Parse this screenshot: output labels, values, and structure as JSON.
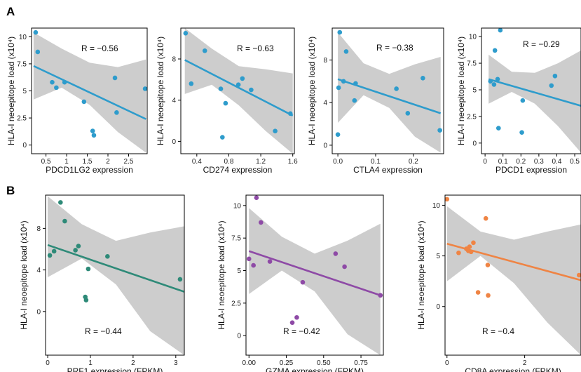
{
  "panels": [
    {
      "letter": "A"
    },
    {
      "letter": "B"
    }
  ],
  "chart_data": [
    {
      "type": "scatter",
      "panel": "A",
      "xlabel": "PDCD1LG2 expression",
      "ylabel": "HLA-I neoepitope load (x10⁴)",
      "annotation": "R = −0.56",
      "color": "#2e9ccc",
      "xlim": [
        0.15,
        2.95
      ],
      "ylim": [
        -0.8,
        10.8
      ],
      "xticks": [
        0.5,
        1,
        1.5,
        2,
        2.5
      ],
      "xtick_labels": [
        "0.5",
        "1",
        "1.5",
        "2",
        "2.5"
      ],
      "yticks": [
        0,
        2.5,
        5,
        7.5,
        10
      ],
      "ytick_labels": [
        "0",
        "2.5",
        "5",
        "7.5",
        "10"
      ],
      "x": [
        0.25,
        0.3,
        0.65,
        0.75,
        0.95,
        1.42,
        1.63,
        1.66,
        2.17,
        2.21,
        2.9
      ],
      "y": [
        10.4,
        8.6,
        5.8,
        5.3,
        5.8,
        4.0,
        1.3,
        0.9,
        6.2,
        3.0,
        5.2
      ],
      "fit": {
        "x": [
          0.2,
          2.92
        ],
        "y": [
          7.3,
          2.4
        ]
      },
      "ci": {
        "upper": [
          10.4,
          8.9,
          7.6,
          7.2,
          7.9
        ],
        "lower": [
          4.2,
          5.3,
          3.7,
          1.2,
          -0.7
        ]
      }
    },
    {
      "type": "scatter",
      "panel": "A",
      "xlabel": "CD274 expression",
      "ylabel": "HLA-I neoepitope load (x10⁴)",
      "annotation": "R = −0.63",
      "color": "#2e9ccc",
      "xlim": [
        0.2,
        1.62
      ],
      "ylim": [
        -1.2,
        11.0
      ],
      "xticks": [
        0.4,
        0.8,
        1.2,
        1.6
      ],
      "xtick_labels": [
        "0.4",
        "0.8",
        "1.2",
        "1.6"
      ],
      "yticks": [
        0,
        4,
        8
      ],
      "ytick_labels": [
        "0",
        "4",
        "8"
      ],
      "x": [
        0.26,
        0.33,
        0.5,
        0.7,
        0.72,
        0.76,
        0.92,
        0.97,
        1.08,
        1.38,
        1.57
      ],
      "y": [
        10.5,
        5.6,
        8.8,
        5.1,
        0.4,
        3.7,
        5.5,
        6.1,
        5.0,
        1.0,
        2.7
      ],
      "fit": {
        "x": [
          0.25,
          1.6
        ],
        "y": [
          7.9,
          2.5
        ]
      },
      "ci": {
        "upper": [
          11.0,
          9.0,
          7.3,
          7.0,
          6.6
        ],
        "lower": [
          4.6,
          5.5,
          3.5,
          1.0,
          -1.2
        ]
      }
    },
    {
      "type": "scatter",
      "panel": "A",
      "xlabel": "CTLA4 expression",
      "ylabel": "HLA-I neoepitope load (x10⁴)",
      "annotation": "R = −0.38",
      "color": "#2e9ccc",
      "xlim": [
        -0.015,
        0.28
      ],
      "ylim": [
        -0.8,
        11.0
      ],
      "xticks": [
        0,
        0.1,
        0.2
      ],
      "xtick_labels": [
        "0.0",
        "0.1",
        "0.2"
      ],
      "yticks": [
        0,
        4,
        8
      ],
      "ytick_labels": [
        "0",
        "4",
        "8"
      ],
      "x": [
        0.0,
        0.002,
        0.005,
        0.015,
        0.022,
        0.044,
        0.047,
        0.155,
        0.185,
        0.225,
        0.27
      ],
      "y": [
        1.0,
        5.4,
        10.6,
        6.0,
        8.8,
        4.2,
        5.8,
        5.3,
        3.0,
        6.3,
        1.4
      ],
      "fit": {
        "x": [
          0.0,
          0.272
        ],
        "y": [
          6.2,
          3.0
        ]
      },
      "ci": {
        "upper": [
          10.6,
          7.7,
          6.7,
          7.6,
          8.3
        ],
        "lower": [
          2.1,
          4.7,
          3.5,
          0.8,
          -0.7
        ]
      }
    },
    {
      "type": "scatter",
      "panel": "A",
      "xlabel": "PDCD1 expression",
      "ylabel": "HLA-I neoepitope load (x10⁴)",
      "annotation": "R = −0.29",
      "color": "#2e9ccc",
      "xlim": [
        -0.02,
        0.535
      ],
      "ylim": [
        -1.0,
        10.8
      ],
      "xticks": [
        0,
        0.1,
        0.2,
        0.3,
        0.4,
        0.5
      ],
      "xtick_labels": [
        "0",
        "0.1",
        "0.2",
        "0.3",
        "0.4",
        "0.5"
      ],
      "yticks": [
        0,
        2.5,
        5,
        7.5,
        10
      ],
      "ytick_labels": [
        "0",
        "2.5",
        "5",
        "7.5",
        "10"
      ],
      "x": [
        0.03,
        0.05,
        0.055,
        0.07,
        0.075,
        0.085,
        0.205,
        0.21,
        0.37,
        0.39
      ],
      "y": [
        5.8,
        5.5,
        8.7,
        6.0,
        1.4,
        10.6,
        1.0,
        4.0,
        5.4,
        6.3
      ],
      "fit": {
        "x": [
          0.02,
          0.535
        ],
        "y": [
          6.0,
          3.5
        ]
      },
      "ci": {
        "upper": [
          8.3,
          6.7,
          6.6,
          7.5,
          8.7
        ],
        "lower": [
          3.7,
          4.8,
          3.7,
          1.6,
          -0.9
        ]
      }
    },
    {
      "type": "scatter",
      "panel": "B",
      "xlabel": "PRF1 expression (FPKM)",
      "ylabel": "HLA-I neoepitope load (x10⁴)",
      "annotation": "R = −0.44",
      "color": "#2e8a78",
      "xlim": [
        -0.05,
        3.2
      ],
      "ylim": [
        -4.2,
        11.2
      ],
      "xticks": [
        0,
        1,
        2,
        3
      ],
      "xtick_labels": [
        "0",
        "1",
        "2",
        "3"
      ],
      "yticks": [
        0,
        4,
        8
      ],
      "ytick_labels": [
        "0",
        "4",
        "8"
      ],
      "x": [
        0.05,
        0.15,
        0.3,
        0.4,
        0.65,
        0.72,
        0.88,
        0.9,
        0.95,
        1.4,
        3.1
      ],
      "y": [
        5.4,
        5.8,
        10.5,
        8.7,
        5.9,
        6.3,
        1.4,
        1.1,
        4.1,
        5.3,
        3.1
      ],
      "fit": {
        "x": [
          0.0,
          3.2
        ],
        "y": [
          6.4,
          1.9
        ]
      },
      "ci": {
        "upper": [
          11.1,
          8.4,
          6.8,
          7.6,
          8.2
        ],
        "lower": [
          3.3,
          5.1,
          2.6,
          -1.9,
          -4.2
        ]
      }
    },
    {
      "type": "scatter",
      "panel": "B",
      "xlabel": "GZMA expression (FPKM)",
      "ylabel": "HLA-I neoepitope load (x10⁴)",
      "annotation": "R = −0.42",
      "color": "#8e4aa6",
      "xlim": [
        -0.02,
        0.9
      ],
      "ylim": [
        -1.5,
        10.8
      ],
      "xticks": [
        0,
        0.25,
        0.5,
        0.75
      ],
      "xtick_labels": [
        "0.00",
        "0.25",
        "0.50",
        "0.75"
      ],
      "yticks": [
        0,
        2.5,
        5,
        7.5,
        10
      ],
      "ytick_labels": [
        "0",
        "2.5",
        "5",
        "7.5",
        "10"
      ],
      "x": [
        0.0,
        0.03,
        0.05,
        0.08,
        0.14,
        0.29,
        0.32,
        0.36,
        0.58,
        0.64,
        0.88
      ],
      "y": [
        5.9,
        5.4,
        10.6,
        8.7,
        5.7,
        1.0,
        1.4,
        4.1,
        6.3,
        5.3,
        3.1
      ],
      "fit": {
        "x": [
          0.0,
          0.88
        ],
        "y": [
          6.5,
          3.1
        ]
      },
      "ci": {
        "upper": [
          9.8,
          7.6,
          6.3,
          7.3,
          8.6
        ],
        "lower": [
          3.2,
          5.0,
          3.4,
          0.1,
          -1.5
        ]
      }
    },
    {
      "type": "scatter",
      "panel": "B",
      "xlabel": "CD8A expression (FPKM)",
      "ylabel": "HLA-I neoepitope load (x10⁴)",
      "annotation": "R = −0.4",
      "color": "#ef8444",
      "xlim": [
        -0.05,
        3.45
      ],
      "ylim": [
        -4.8,
        11.0
      ],
      "xticks": [
        0,
        2
      ],
      "xtick_labels": [
        "0",
        "2"
      ],
      "yticks": [
        0,
        5,
        10
      ],
      "ytick_labels": [
        "0",
        "5",
        "10"
      ],
      "x": [
        0.0,
        0.3,
        0.5,
        0.55,
        0.58,
        0.62,
        0.68,
        0.8,
        1.0,
        1.05,
        1.06,
        3.4
      ],
      "y": [
        10.6,
        5.3,
        5.7,
        5.5,
        5.9,
        5.4,
        6.3,
        1.4,
        8.7,
        4.1,
        1.1,
        3.1
      ],
      "fit": {
        "x": [
          0.0,
          3.45
        ],
        "y": [
          6.2,
          2.6
        ]
      },
      "ci": {
        "upper": [
          9.9,
          7.4,
          6.6,
          7.4,
          8.1
        ],
        "lower": [
          2.5,
          5.0,
          2.3,
          -1.6,
          -4.8
        ]
      }
    }
  ]
}
